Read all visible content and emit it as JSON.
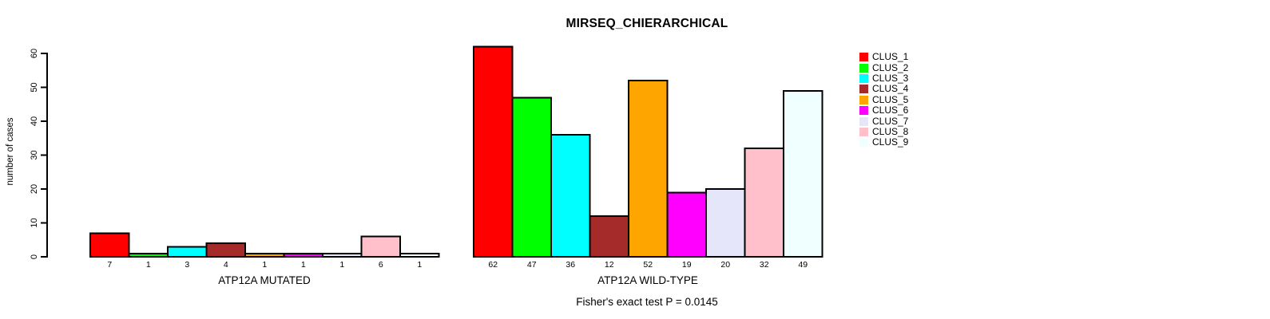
{
  "figure": {
    "background": "#FFFFFF",
    "bar_outline": "#000000"
  },
  "chart_data": {
    "type": "bar",
    "title": "MIRSEQ_CHIERARCHICAL",
    "ylabel": "number of cases",
    "ylim": [
      0,
      60
    ],
    "yticks": [
      0,
      10,
      20,
      30,
      40,
      50,
      60
    ],
    "grid": false,
    "legend_position": "top-right",
    "legend": [
      {
        "label": "CLUS_1",
        "color": "#FF0000"
      },
      {
        "label": "CLUS_2",
        "color": "#00FF00"
      },
      {
        "label": "CLUS_3",
        "color": "#00FFFF"
      },
      {
        "label": "CLUS_4",
        "color": "#A52A2A"
      },
      {
        "label": "CLUS_5",
        "color": "#FFA500"
      },
      {
        "label": "CLUS_6",
        "color": "#FF00FF"
      },
      {
        "label": "CLUS_7",
        "color": "#E6E6FA"
      },
      {
        "label": "CLUS_8",
        "color": "#FFC0CB"
      },
      {
        "label": "CLUS_9",
        "color": "#F0FFFF"
      }
    ],
    "groups": [
      {
        "label": "ATP12A MUTATED",
        "values": [
          7,
          1,
          3,
          4,
          1,
          1,
          1,
          6,
          1
        ]
      },
      {
        "label": "ATP12A WILD-TYPE",
        "values": [
          62,
          47,
          36,
          12,
          52,
          19,
          20,
          32,
          49
        ]
      }
    ],
    "annotation": "Fisher's exact test P = 0.0145"
  }
}
